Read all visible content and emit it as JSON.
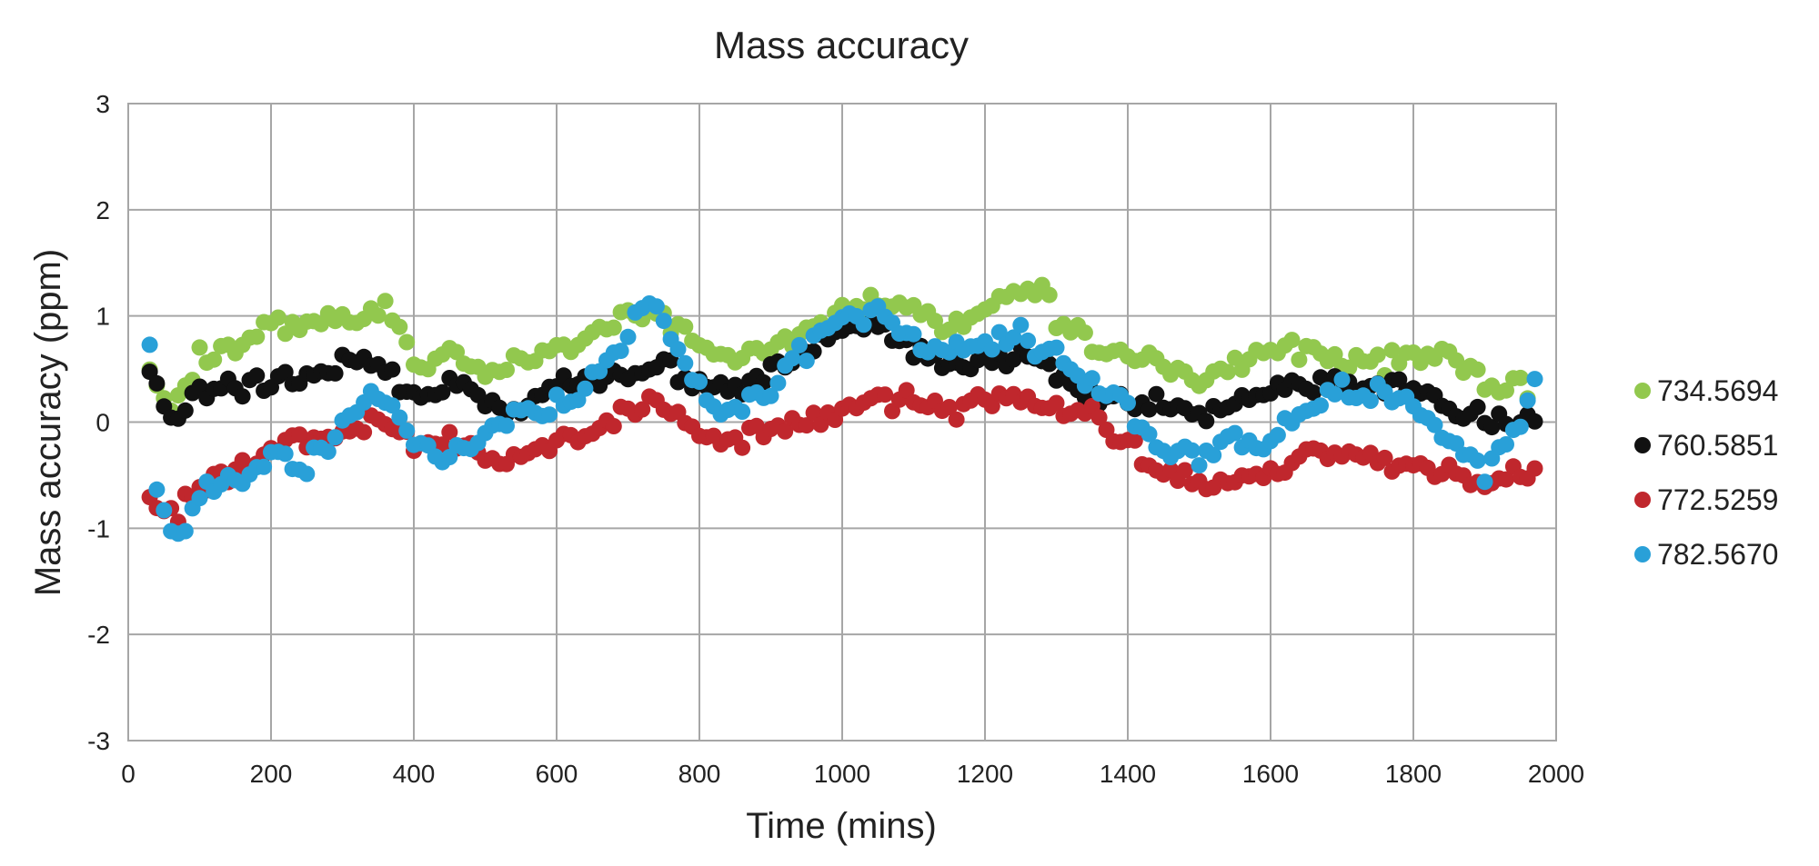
{
  "chart_data": {
    "type": "scatter",
    "title": "Mass accuracy",
    "xlabel": "Time (mins)",
    "ylabel": "Mass accuracy (ppm)",
    "xlim": [
      0,
      2000
    ],
    "ylim": [
      -3,
      3
    ],
    "xticks": [
      0,
      200,
      400,
      600,
      800,
      1000,
      1200,
      1400,
      1600,
      1800,
      2000
    ],
    "yticks": [
      -3,
      -2,
      -1,
      0,
      1,
      2,
      3
    ],
    "xtick_labels": [
      "0",
      "200",
      "400",
      "600",
      "800",
      "1000",
      "1200",
      "1400",
      "1600",
      "1800",
      "2000"
    ],
    "ytick_labels": [
      "-3",
      "-2",
      "-1",
      "0",
      "1",
      "2",
      "3"
    ],
    "grid": true,
    "legend_position": "right",
    "x_start": 30,
    "x_step": 10,
    "series": [
      {
        "name": "734.5694",
        "color": "#92c84e",
        "anchors": [
          [
            30,
            0.5
          ],
          [
            60,
            0.2
          ],
          [
            100,
            0.6
          ],
          [
            200,
            0.9
          ],
          [
            300,
            1.0
          ],
          [
            370,
            1.05
          ],
          [
            400,
            0.55
          ],
          [
            450,
            0.7
          ],
          [
            500,
            0.45
          ],
          [
            550,
            0.6
          ],
          [
            600,
            0.65
          ],
          [
            650,
            0.8
          ],
          [
            700,
            1.05
          ],
          [
            750,
            1.0
          ],
          [
            800,
            0.7
          ],
          [
            850,
            0.65
          ],
          [
            900,
            0.75
          ],
          [
            950,
            0.85
          ],
          [
            1000,
            1.0
          ],
          [
            1050,
            1.2
          ],
          [
            1100,
            1.1
          ],
          [
            1150,
            0.9
          ],
          [
            1200,
            1.1
          ],
          [
            1250,
            1.2
          ],
          [
            1280,
            1.3
          ],
          [
            1300,
            1.0
          ],
          [
            1350,
            0.75
          ],
          [
            1400,
            0.6
          ],
          [
            1450,
            0.55
          ],
          [
            1500,
            0.35
          ],
          [
            1550,
            0.55
          ],
          [
            1600,
            0.7
          ],
          [
            1650,
            0.65
          ],
          [
            1700,
            0.6
          ],
          [
            1750,
            0.55
          ],
          [
            1800,
            0.6
          ],
          [
            1850,
            0.65
          ],
          [
            1900,
            0.4
          ],
          [
            1960,
            0.3
          ]
        ],
        "amp": 0.09
      },
      {
        "name": "760.5851",
        "color": "#111111",
        "anchors": [
          [
            30,
            0.5
          ],
          [
            60,
            0.0
          ],
          [
            100,
            0.3
          ],
          [
            150,
            0.3
          ],
          [
            200,
            0.4
          ],
          [
            250,
            0.45
          ],
          [
            300,
            0.6
          ],
          [
            350,
            0.55
          ],
          [
            400,
            0.25
          ],
          [
            450,
            0.35
          ],
          [
            500,
            0.2
          ],
          [
            550,
            0.1
          ],
          [
            600,
            0.35
          ],
          [
            650,
            0.4
          ],
          [
            700,
            0.5
          ],
          [
            750,
            0.55
          ],
          [
            800,
            0.35
          ],
          [
            850,
            0.3
          ],
          [
            900,
            0.45
          ],
          [
            950,
            0.7
          ],
          [
            1000,
            0.9
          ],
          [
            1050,
            0.9
          ],
          [
            1100,
            0.7
          ],
          [
            1150,
            0.5
          ],
          [
            1200,
            0.55
          ],
          [
            1250,
            0.65
          ],
          [
            1300,
            0.45
          ],
          [
            1350,
            0.25
          ],
          [
            1400,
            0.2
          ],
          [
            1450,
            0.15
          ],
          [
            1500,
            0.05
          ],
          [
            1550,
            0.2
          ],
          [
            1600,
            0.35
          ],
          [
            1650,
            0.3
          ],
          [
            1700,
            0.35
          ],
          [
            1750,
            0.3
          ],
          [
            1800,
            0.35
          ],
          [
            1850,
            0.1
          ],
          [
            1900,
            0.05
          ],
          [
            1970,
            0.0
          ]
        ],
        "amp": 0.08
      },
      {
        "name": "772.5259",
        "color": "#c0272d",
        "anchors": [
          [
            30,
            -0.75
          ],
          [
            70,
            -0.85
          ],
          [
            100,
            -0.6
          ],
          [
            150,
            -0.45
          ],
          [
            200,
            -0.25
          ],
          [
            250,
            -0.15
          ],
          [
            300,
            -0.05
          ],
          [
            350,
            0.0
          ],
          [
            400,
            -0.2
          ],
          [
            450,
            -0.15
          ],
          [
            500,
            -0.3
          ],
          [
            550,
            -0.35
          ],
          [
            600,
            -0.2
          ],
          [
            650,
            -0.1
          ],
          [
            700,
            0.15
          ],
          [
            750,
            0.2
          ],
          [
            800,
            -0.1
          ],
          [
            850,
            -0.2
          ],
          [
            900,
            -0.05
          ],
          [
            950,
            0.0
          ],
          [
            1000,
            0.1
          ],
          [
            1050,
            0.2
          ],
          [
            1100,
            0.2
          ],
          [
            1150,
            0.1
          ],
          [
            1200,
            0.2
          ],
          [
            1250,
            0.2
          ],
          [
            1300,
            0.15
          ],
          [
            1350,
            0.05
          ],
          [
            1400,
            -0.2
          ],
          [
            1450,
            -0.45
          ],
          [
            1500,
            -0.6
          ],
          [
            1550,
            -0.55
          ],
          [
            1600,
            -0.45
          ],
          [
            1650,
            -0.3
          ],
          [
            1700,
            -0.3
          ],
          [
            1750,
            -0.35
          ],
          [
            1800,
            -0.45
          ],
          [
            1850,
            -0.45
          ],
          [
            1900,
            -0.55
          ],
          [
            1970,
            -0.45
          ]
        ],
        "amp": 0.08
      },
      {
        "name": "782.5670",
        "color": "#29a0d8",
        "anchors": [
          [
            30,
            0.65
          ],
          [
            40,
            -0.6
          ],
          [
            60,
            -1.0
          ],
          [
            80,
            -0.95
          ],
          [
            120,
            -0.6
          ],
          [
            160,
            -0.5
          ],
          [
            200,
            -0.4
          ],
          [
            250,
            -0.4
          ],
          [
            300,
            -0.1
          ],
          [
            350,
            0.3
          ],
          [
            380,
            0.1
          ],
          [
            400,
            -0.25
          ],
          [
            450,
            -0.3
          ],
          [
            500,
            -0.1
          ],
          [
            550,
            0.05
          ],
          [
            600,
            0.15
          ],
          [
            650,
            0.4
          ],
          [
            700,
            0.8
          ],
          [
            720,
            1.1
          ],
          [
            750,
            0.9
          ],
          [
            800,
            0.25
          ],
          [
            850,
            0.05
          ],
          [
            900,
            0.35
          ],
          [
            950,
            0.7
          ],
          [
            1000,
            1.05
          ],
          [
            1050,
            1.0
          ],
          [
            1100,
            0.8
          ],
          [
            1150,
            0.6
          ],
          [
            1200,
            0.75
          ],
          [
            1250,
            0.8
          ],
          [
            1300,
            0.6
          ],
          [
            1350,
            0.35
          ],
          [
            1400,
            0.2
          ],
          [
            1420,
            -0.1
          ],
          [
            1450,
            -0.2
          ],
          [
            1500,
            -0.4
          ],
          [
            1550,
            -0.1
          ],
          [
            1600,
            -0.2
          ],
          [
            1650,
            0.1
          ],
          [
            1700,
            0.3
          ],
          [
            1750,
            0.25
          ],
          [
            1800,
            0.15
          ],
          [
            1830,
            -0.05
          ],
          [
            1870,
            -0.3
          ],
          [
            1900,
            -0.45
          ],
          [
            1940,
            -0.15
          ],
          [
            1970,
            0.35
          ]
        ],
        "amp": 0.1
      }
    ]
  }
}
